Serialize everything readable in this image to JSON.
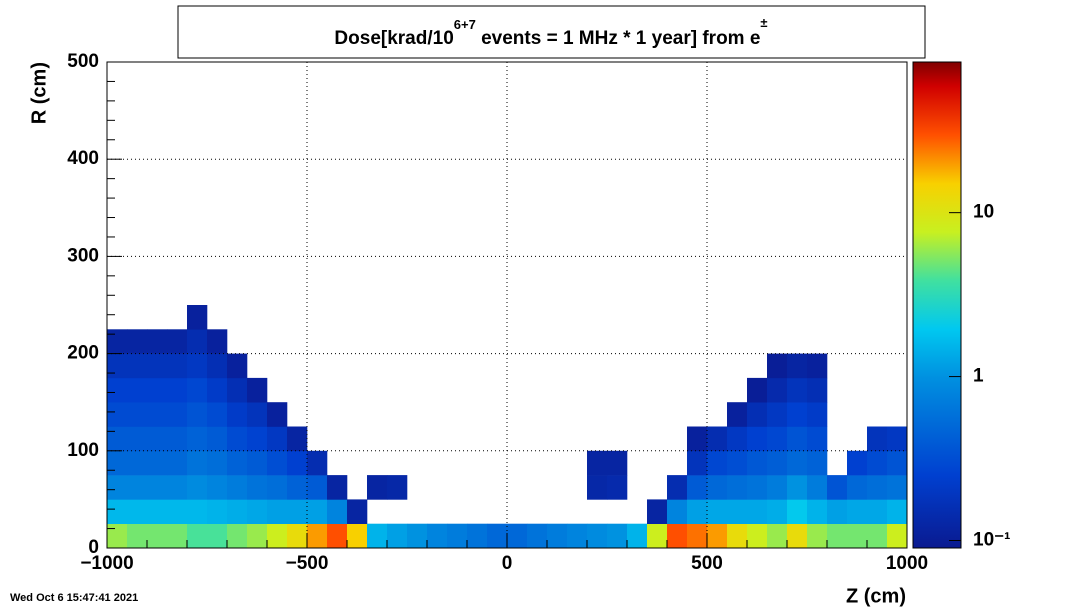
{
  "chart_data": {
    "type": "heatmap",
    "title": [
      "Dose[krad/10",
      "6+7",
      " events = 1 MHz * 1 year] from e",
      "±"
    ],
    "x_label": "Z (cm)",
    "y_label": "R (cm)",
    "timestamp": "Wed Oct  6 15:47:41 2021",
    "xlim": [
      -1000,
      1000
    ],
    "ylim": [
      0,
      500
    ],
    "xticks": [
      {
        "value": -1000,
        "label": "−1000"
      },
      {
        "value": -500,
        "label": "−500"
      },
      0,
      500,
      1000
    ],
    "yticks": [
      0,
      100,
      200,
      300,
      400,
      500
    ],
    "grid": true,
    "zlog": true,
    "zlim": [
      0.09,
      83
    ],
    "zticks": [
      {
        "value": 0.1,
        "label": "10⁻¹"
      },
      1,
      10
    ],
    "colormap": [
      [
        0,
        "#0a1a90"
      ],
      [
        0.15,
        "#0040d0"
      ],
      [
        0.35,
        "#0090e0"
      ],
      [
        0.45,
        "#00c8f0"
      ],
      [
        0.55,
        "#40e0a0"
      ],
      [
        0.65,
        "#c8f020"
      ],
      [
        0.75,
        "#f8d000"
      ],
      [
        0.85,
        "#ff5000"
      ],
      [
        0.95,
        "#d00000"
      ],
      [
        1,
        "#800000"
      ]
    ],
    "xbins": [
      -1000,
      -950,
      -900,
      -850,
      -800,
      -750,
      -700,
      -650,
      -600,
      -550,
      -500,
      -450,
      -400,
      -350,
      -300,
      -250,
      -200,
      -150,
      -100,
      -50,
      0,
      50,
      100,
      150,
      200,
      250,
      300,
      350,
      400,
      450,
      500,
      550,
      600,
      650,
      700,
      750,
      800,
      850,
      900,
      950,
      1000
    ],
    "ybins": [
      0,
      25,
      50,
      75,
      100,
      125,
      150,
      175,
      200,
      225,
      250
    ],
    "values": [
      [
        6,
        1.6,
        0.8,
        0.5,
        0.4,
        0.3,
        0.25,
        0.18,
        0.12,
        null
      ],
      [
        5,
        1.6,
        0.8,
        0.5,
        0.4,
        0.3,
        0.25,
        0.18,
        0.12,
        null
      ],
      [
        5,
        1.6,
        0.8,
        0.5,
        0.4,
        0.3,
        0.25,
        0.18,
        0.12,
        null
      ],
      [
        5,
        1.6,
        0.8,
        0.5,
        0.4,
        0.3,
        0.25,
        0.18,
        0.12,
        null
      ],
      [
        4,
        1.6,
        0.9,
        0.6,
        0.45,
        0.35,
        0.28,
        0.2,
        0.15,
        0.11
      ],
      [
        4,
        1.5,
        0.8,
        0.55,
        0.4,
        0.3,
        0.22,
        0.16,
        0.11,
        null
      ],
      [
        5,
        1.4,
        0.7,
        0.45,
        0.3,
        0.22,
        0.16,
        0.11,
        null,
        null
      ],
      [
        6,
        1.3,
        0.6,
        0.4,
        0.26,
        0.18,
        0.11,
        null,
        null,
        null
      ],
      [
        8,
        1.2,
        0.55,
        0.32,
        0.2,
        0.11,
        null,
        null,
        null,
        null
      ],
      [
        12,
        1.2,
        0.45,
        0.25,
        0.12,
        null,
        null,
        null,
        null,
        null
      ],
      [
        20,
        1.2,
        0.4,
        0.15,
        null,
        null,
        null,
        null,
        null,
        null
      ],
      [
        30,
        0.8,
        0.12,
        null,
        null,
        null,
        null,
        null,
        null,
        null
      ],
      [
        15,
        0.12,
        null,
        null,
        null,
        null,
        null,
        null,
        null,
        null
      ],
      [
        1.5,
        null,
        0.12,
        null,
        null,
        null,
        null,
        null,
        null,
        null
      ],
      [
        1.2,
        null,
        0.13,
        null,
        null,
        null,
        null,
        null,
        null,
        null
      ],
      [
        1,
        null,
        null,
        null,
        null,
        null,
        null,
        null,
        null,
        null
      ],
      [
        0.8,
        null,
        null,
        null,
        null,
        null,
        null,
        null,
        null,
        null
      ],
      [
        0.7,
        null,
        null,
        null,
        null,
        null,
        null,
        null,
        null,
        null
      ],
      [
        0.6,
        null,
        null,
        null,
        null,
        null,
        null,
        null,
        null,
        null
      ],
      [
        0.5,
        null,
        null,
        null,
        null,
        null,
        null,
        null,
        null,
        null
      ],
      [
        0.5,
        null,
        null,
        null,
        null,
        null,
        null,
        null,
        null,
        null
      ],
      [
        0.6,
        null,
        null,
        null,
        null,
        null,
        null,
        null,
        null,
        null
      ],
      [
        0.7,
        null,
        null,
        null,
        null,
        null,
        null,
        null,
        null,
        null
      ],
      [
        0.8,
        null,
        null,
        null,
        null,
        null,
        null,
        null,
        null,
        null
      ],
      [
        0.9,
        null,
        0.13,
        0.12,
        null,
        null,
        null,
        null,
        null,
        null
      ],
      [
        1,
        null,
        0.14,
        0.12,
        null,
        null,
        null,
        null,
        null,
        null
      ],
      [
        1.5,
        null,
        null,
        null,
        null,
        null,
        null,
        null,
        null,
        null
      ],
      [
        8,
        0.12,
        null,
        null,
        null,
        null,
        null,
        null,
        null,
        null
      ],
      [
        30,
        0.8,
        0.15,
        null,
        null,
        null,
        null,
        null,
        null,
        null
      ],
      [
        25,
        1.2,
        0.4,
        0.18,
        0.11,
        null,
        null,
        null,
        null,
        null
      ],
      [
        20,
        1.3,
        0.5,
        0.28,
        0.15,
        null,
        null,
        null,
        null,
        null
      ],
      [
        12,
        1.3,
        0.55,
        0.32,
        0.2,
        0.11,
        null,
        null,
        null,
        null
      ],
      [
        8,
        1.3,
        0.6,
        0.38,
        0.25,
        0.16,
        0.1,
        null,
        null,
        null
      ],
      [
        6,
        1.4,
        0.7,
        0.42,
        0.28,
        0.2,
        0.14,
        0.1,
        null,
        null
      ],
      [
        12,
        2,
        1,
        0.5,
        0.35,
        0.25,
        0.18,
        0.12,
        null,
        null
      ],
      [
        6,
        1.5,
        0.7,
        0.45,
        0.3,
        0.22,
        0.16,
        0.11,
        null,
        null
      ],
      [
        5,
        1.2,
        0.35,
        null,
        null,
        null,
        null,
        null,
        null,
        null
      ],
      [
        5,
        1.3,
        0.5,
        0.25,
        null,
        null,
        null,
        null,
        null,
        null
      ],
      [
        5,
        1.3,
        0.55,
        0.3,
        0.18,
        null,
        null,
        null,
        null,
        null
      ],
      [
        8,
        1.5,
        0.6,
        0.35,
        0.2,
        null,
        null,
        null,
        null,
        null
      ]
    ]
  }
}
